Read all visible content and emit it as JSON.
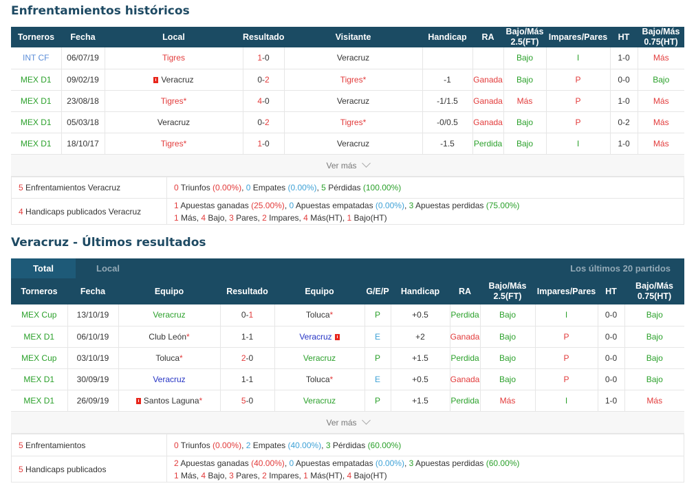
{
  "h2h": {
    "title": "Enfrentamientos históricos",
    "headers": [
      "Torneros",
      "Fecha",
      "Local",
      "Resultado",
      "Visitante",
      "Handicap",
      "RA",
      "Bajo/Más 2.5(FT)",
      "Impares/Pares",
      "HT",
      "Bajo/Más 0.75(HT)"
    ],
    "rows": [
      {
        "torneo": "INT CF",
        "fecha": "06/07/19",
        "local": "Tigres",
        "res_h": "1",
        "res_a": "0",
        "visitante": "Veracruz",
        "handicap": "",
        "ra": "",
        "bm": "Bajo",
        "ip": "I",
        "ht": "1-0",
        "bm_ht": "Más"
      },
      {
        "torneo": "MEX D1",
        "fecha": "09/02/19",
        "local": "Veracruz",
        "res_h": "0",
        "res_a": "2",
        "visitante": "Tigres*",
        "handicap": "-1",
        "ra": "Ganada",
        "bm": "Bajo",
        "ip": "P",
        "ht": "0-0",
        "bm_ht": "Bajo"
      },
      {
        "torneo": "MEX D1",
        "fecha": "23/08/18",
        "local": "Tigres*",
        "res_h": "4",
        "res_a": "0",
        "visitante": "Veracruz",
        "handicap": "-1/1.5",
        "ra": "Ganada",
        "bm": "Más",
        "ip": "P",
        "ht": "1-0",
        "bm_ht": "Más"
      },
      {
        "torneo": "MEX D1",
        "fecha": "05/03/18",
        "local": "Veracruz",
        "res_h": "0",
        "res_a": "2",
        "visitante": "Tigres*",
        "handicap": "-0/0.5",
        "ra": "Ganada",
        "bm": "Bajo",
        "ip": "P",
        "ht": "0-2",
        "bm_ht": "Más"
      },
      {
        "torneo": "MEX D1",
        "fecha": "18/10/17",
        "local": "Tigres*",
        "res_h": "1",
        "res_a": "0",
        "visitante": "Veracruz",
        "handicap": "-1.5",
        "ra": "Perdida",
        "bm": "Bajo",
        "ip": "I",
        "ht": "1-0",
        "bm_ht": "Más"
      }
    ],
    "ver_mas": "Ver más",
    "summary1_label": "Enfrentamientos Veracruz",
    "summary1_n": "5",
    "summary1": {
      "a": "0",
      "a_txt": " Triunfos ",
      "a_pct": "(0.00%)",
      "b": "0",
      "b_txt": " Empates ",
      "b_pct": "(0.00%)",
      "c": "5",
      "c_txt": " Pérdidas ",
      "c_pct": "(100.00%)"
    },
    "summary2_label": "Handicaps publicados Veracruz",
    "summary2_n": "4",
    "summary2": {
      "a": "1",
      "a_txt": " Apuestas ganadas ",
      "a_pct": "(25.00%)",
      "b": "0",
      "b_txt": " Apuestas empatadas ",
      "b_pct": "(0.00%)",
      "c": "3",
      "c_txt": " Apuestas perdidas ",
      "c_pct": "(75.00%)"
    },
    "summary2_line2": {
      "a": "1",
      "a_txt": " Más, ",
      "b": "4",
      "b_txt": " Bajo, ",
      "c": "3",
      "c_txt": " Pares, ",
      "d": "2",
      "d_txt": " Impares, ",
      "e": "4",
      "e_txt": " Más(HT), ",
      "f": "1",
      "f_txt": " Bajo(HT)"
    }
  },
  "recent": {
    "title": "Veracruz - Últimos resultados",
    "tab_total": "Total",
    "tab_local": "Local",
    "tab_right": "Los últimos 20 partidos",
    "headers": [
      "Torneros",
      "Fecha",
      "Equipo",
      "Resultado",
      "Equipo",
      "G/E/P",
      "Handicap",
      "RA",
      "Bajo/Más 2.5(FT)",
      "Impares/Pares",
      "HT",
      "Bajo/Más 0.75(HT)"
    ],
    "rows": [
      {
        "torneo": "MEX Cup",
        "fecha": "13/10/19",
        "eq1": "Veracruz",
        "res_h": "0",
        "res_a": "1",
        "eq2": "Toluca",
        "gep": "P",
        "handicap": "+0.5",
        "ra": "Perdida",
        "bm": "Bajo",
        "ip": "I",
        "ht": "0-0",
        "bm_ht": "Bajo"
      },
      {
        "torneo": "MEX D1",
        "fecha": "06/10/19",
        "eq1": "Club León",
        "res_h": "1",
        "res_a": "1",
        "eq2": "Veracruz",
        "gep": "E",
        "handicap": "+2",
        "ra": "Ganada",
        "bm": "Bajo",
        "ip": "P",
        "ht": "0-0",
        "bm_ht": "Bajo"
      },
      {
        "torneo": "MEX Cup",
        "fecha": "03/10/19",
        "eq1": "Toluca",
        "res_h": "2",
        "res_a": "0",
        "eq2": "Veracruz",
        "gep": "P",
        "handicap": "+1.5",
        "ra": "Perdida",
        "bm": "Bajo",
        "ip": "P",
        "ht": "0-0",
        "bm_ht": "Bajo"
      },
      {
        "torneo": "MEX D1",
        "fecha": "30/09/19",
        "eq1": "Veracruz",
        "res_h": "1",
        "res_a": "1",
        "eq2": "Toluca",
        "gep": "E",
        "handicap": "+0.5",
        "ra": "Ganada",
        "bm": "Bajo",
        "ip": "P",
        "ht": "0-0",
        "bm_ht": "Bajo"
      },
      {
        "torneo": "MEX D1",
        "fecha": "26/09/19",
        "eq1": "Santos Laguna",
        "res_h": "5",
        "res_a": "0",
        "eq2": "Veracruz",
        "gep": "P",
        "handicap": "+1.5",
        "ra": "Perdida",
        "bm": "Más",
        "ip": "I",
        "ht": "1-0",
        "bm_ht": "Más"
      }
    ],
    "ver_mas": "Ver más",
    "summary1_label": "Enfrentamientos",
    "summary1_n": "5",
    "summary1": {
      "a": "0",
      "a_txt": " Triunfos ",
      "a_pct": "(0.00%)",
      "b": "2",
      "b_txt": " Empates ",
      "b_pct": "(40.00%)",
      "c": "3",
      "c_txt": " Pérdidas ",
      "c_pct": "(60.00%)"
    },
    "summary2_label": "Handicaps publicados",
    "summary2_n": "5",
    "summary2": {
      "a": "2",
      "a_txt": " Apuestas ganadas ",
      "a_pct": "(40.00%)",
      "b": "0",
      "b_txt": " Apuestas empatadas ",
      "b_pct": "(0.00%)",
      "c": "3",
      "c_txt": " Apuestas perdidas ",
      "c_pct": "(60.00%)"
    },
    "summary2_line2": {
      "a": "1",
      "a_txt": " Más, ",
      "b": "4",
      "b_txt": " Bajo, ",
      "c": "3",
      "c_txt": " Pares, ",
      "d": "2",
      "d_txt": " Impares, ",
      "e": "1",
      "e_txt": " Más(HT), ",
      "f": "4",
      "f_txt": " Bajo(HT)"
    }
  },
  "colors": {
    "header_bg": "#1b4b63",
    "win": "#2aa02a",
    "loss": "#e23a3a",
    "draw": "#3da1d6"
  }
}
